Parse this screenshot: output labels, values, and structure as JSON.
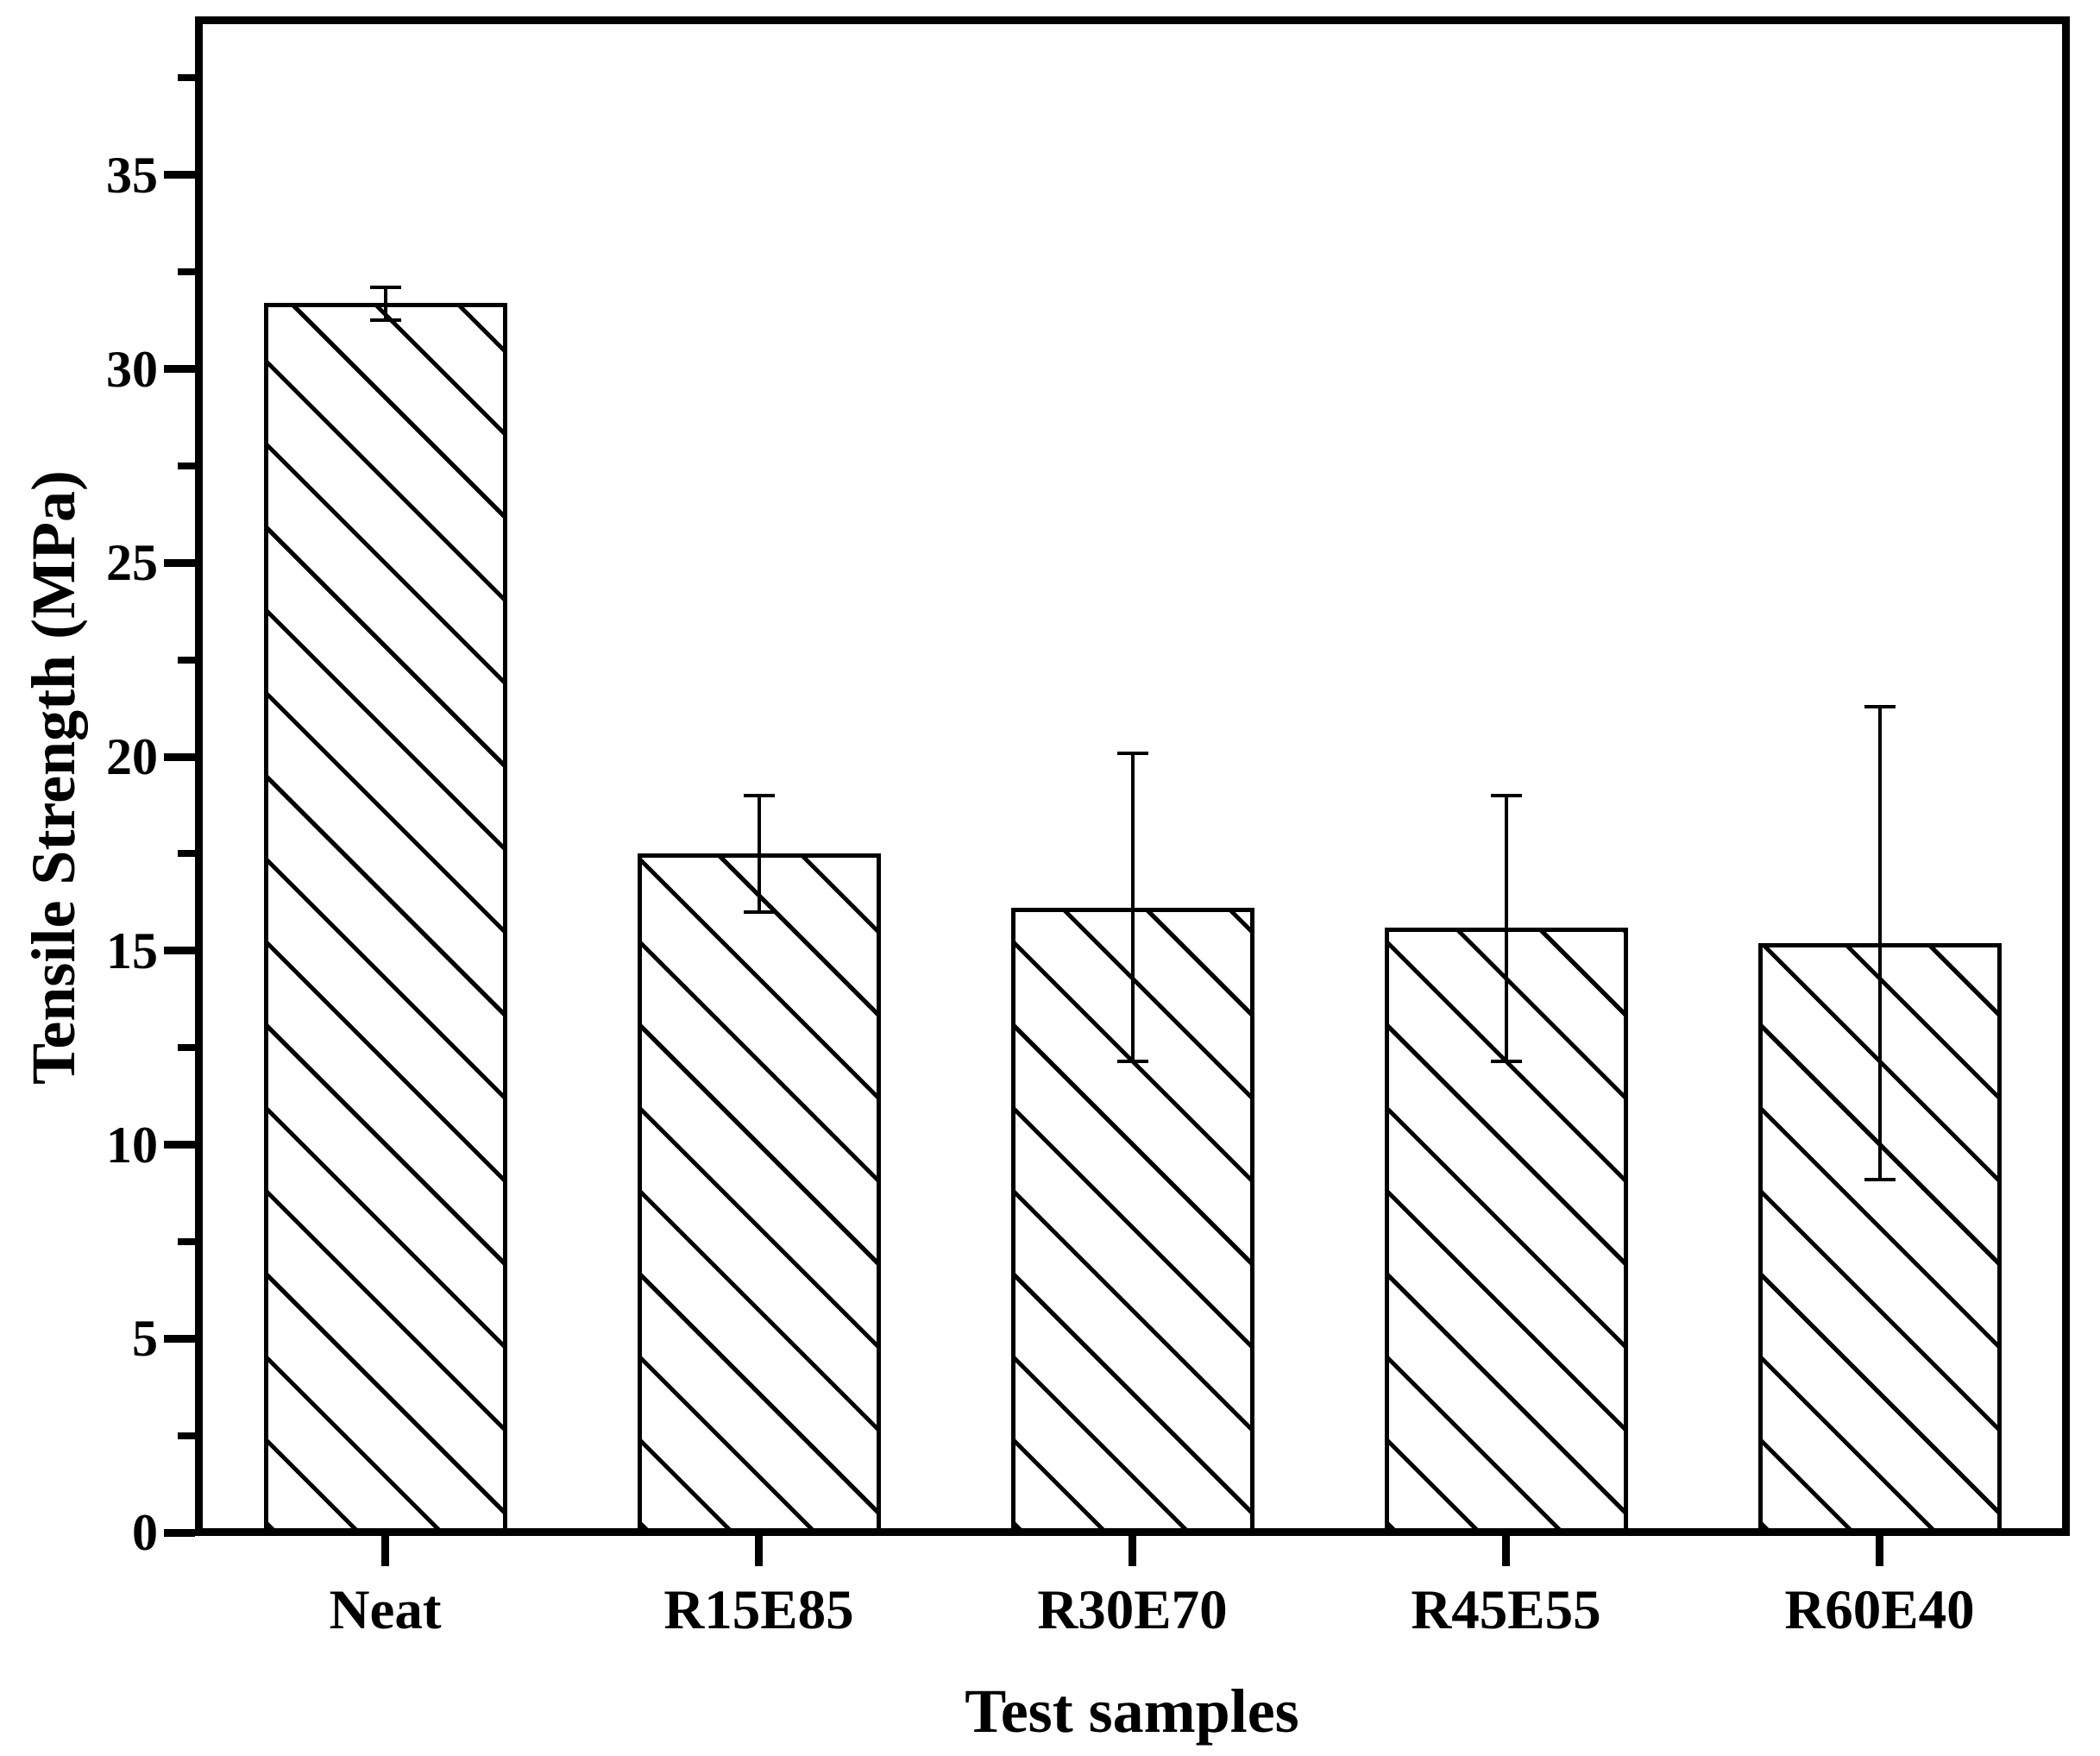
{
  "figure": {
    "background": "#ffffff",
    "foreground": "#000000"
  },
  "chart_data": {
    "type": "bar",
    "title": "",
    "xlabel": "Test samples",
    "ylabel": "Tensile Strength (MPa)",
    "categories": [
      "Neat",
      "R15E85",
      "R30E70",
      "R45E55",
      "R60E40"
    ],
    "series": [
      {
        "name": "Tensile Strength",
        "values": [
          31.7,
          17.5,
          16.1,
          15.6,
          15.2
        ],
        "error_plus": [
          0.4,
          1.5,
          4.0,
          3.4,
          6.1
        ],
        "error_minus": [
          0.45,
          1.5,
          3.95,
          3.45,
          6.1
        ]
      }
    ],
    "ylim": [
      0,
      39
    ],
    "yticks_major": [
      0,
      5,
      10,
      15,
      20,
      25,
      30,
      35
    ],
    "yticks_minor": [
      2.5,
      7.5,
      12.5,
      17.5,
      22.5,
      27.5,
      32.5,
      37.5
    ],
    "grid": false,
    "legend": false,
    "bar_style": {
      "fill": "white",
      "hatch": "\\ diagonal",
      "edge_color": "#000000"
    },
    "colors": {
      "foreground": "#000000",
      "background": "#ffffff"
    }
  }
}
